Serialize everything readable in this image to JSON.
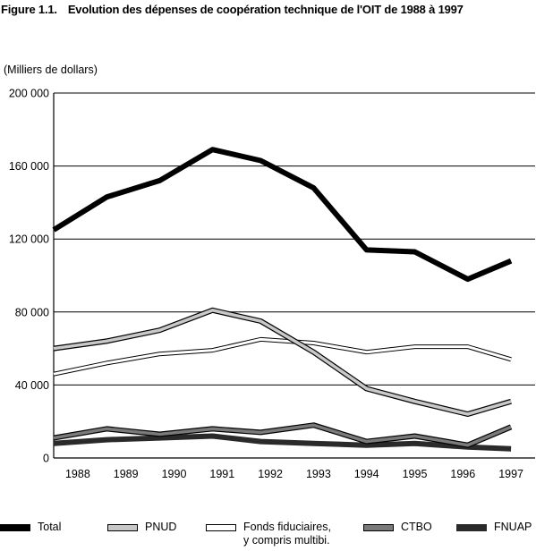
{
  "figure": {
    "number": "Figure 1.1.",
    "title": "Evolution des dépenses de coopération technique de l'OIT de 1988 à 1997"
  },
  "chart_data": {
    "type": "line",
    "title": "Evolution des dépenses de coopération technique de l'OIT de 1988 à 1997",
    "ylabel": "(Milliers de dollars)",
    "xlabel": "",
    "categories": [
      "1988",
      "1989",
      "1990",
      "1991",
      "1992",
      "1993",
      "1994",
      "1995",
      "1996",
      "1997"
    ],
    "x": [
      1987.5,
      1988.6,
      1989.7,
      1990.8,
      1991.8,
      1992.9,
      1994.0,
      1995.0,
      1996.1,
      1997.0
    ],
    "ylim": [
      0,
      200000
    ],
    "yticks": [
      0,
      40000,
      80000,
      120000,
      160000,
      200000
    ],
    "ytick_labels": [
      "0",
      "40 000",
      "80 000",
      "120 000",
      "160 000",
      "200 000"
    ],
    "grid": true,
    "legend_position": "bottom",
    "series": [
      {
        "name": "Total",
        "color": "#000000",
        "style": "solid-thick",
        "values": [
          125000,
          143000,
          152000,
          169000,
          163000,
          148000,
          114000,
          113000,
          98000,
          108000
        ]
      },
      {
        "name": "PNUD",
        "color": "#c8c8c8",
        "style": "outlined-gray",
        "values": [
          60000,
          64000,
          70000,
          81000,
          75000,
          58000,
          38000,
          31000,
          24000,
          31000
        ]
      },
      {
        "name": "Fonds fiduciaires,|y compris multibi.",
        "color": "#ffffff",
        "style": "outlined-white",
        "values": [
          46000,
          52000,
          57000,
          59000,
          65000,
          63000,
          58000,
          61000,
          61000,
          54000
        ]
      },
      {
        "name": "CTBO",
        "color": "#7a7a7a",
        "style": "outlined-dark-gray",
        "values": [
          11000,
          16000,
          13000,
          16000,
          14000,
          18000,
          9000,
          12000,
          7000,
          17000
        ]
      },
      {
        "name": "FNUAP",
        "color": "#2a2a2a",
        "style": "solid-dark",
        "values": [
          8000,
          10000,
          11000,
          12000,
          9000,
          8000,
          7000,
          8000,
          6000,
          5000
        ]
      }
    ]
  }
}
